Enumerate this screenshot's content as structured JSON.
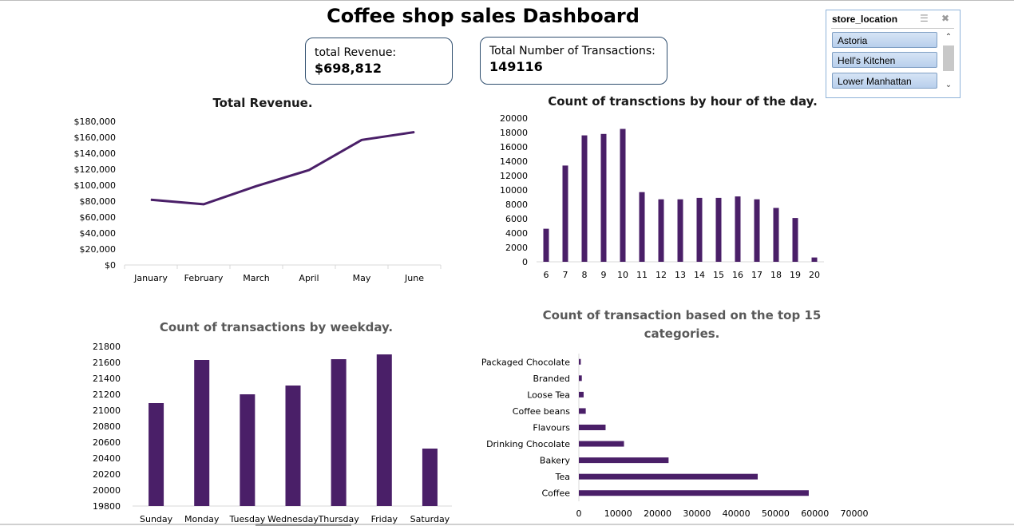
{
  "dashboard": {
    "title": "Coffee shop sales Dashboard"
  },
  "kpis": [
    {
      "label": "total Revenue:",
      "value": "$698,812"
    },
    {
      "label": "Total Number of Transactions:",
      "value": "149116"
    }
  ],
  "slicer": {
    "header": "store_location",
    "items": [
      "Astoria",
      "Hell's Kitchen",
      "Lower Manhattan"
    ]
  },
  "colors": {
    "series": "#4a1f68",
    "axis": "#d9d9d9",
    "chart_title_dark": "#1a1a1a",
    "chart_title_gray": "#595959",
    "slicer_border": "#8fb3d9"
  },
  "chart_data": [
    {
      "type": "line",
      "title": "Total Revenue.",
      "categories": [
        "January",
        "February",
        "March",
        "April",
        "May",
        "June"
      ],
      "values": [
        81700,
        76100,
        98800,
        118900,
        156700,
        166500
      ],
      "ylim": [
        0,
        180000
      ],
      "yticks": [
        0,
        20000,
        40000,
        60000,
        80000,
        100000,
        120000,
        140000,
        160000,
        180000
      ],
      "ytick_labels": [
        "$0",
        "$20,000",
        "$40,000",
        "$60,000",
        "$80,000",
        "$100,000",
        "$120,000",
        "$140,000",
        "$160,000",
        "$180,000"
      ],
      "grid": false
    },
    {
      "type": "bar",
      "title": "Count of transctions by hour of the day.",
      "categories": [
        "6",
        "7",
        "8",
        "9",
        "10",
        "11",
        "12",
        "13",
        "14",
        "15",
        "16",
        "17",
        "18",
        "19",
        "20"
      ],
      "values": [
        4600,
        13400,
        17600,
        17800,
        18500,
        9700,
        8700,
        8700,
        8900,
        8900,
        9100,
        8700,
        7500,
        6100,
        600
      ],
      "ylim": [
        0,
        20000
      ],
      "yticks": [
        0,
        2000,
        4000,
        6000,
        8000,
        10000,
        12000,
        14000,
        16000,
        18000,
        20000
      ],
      "ytick_labels": [
        "0",
        "2000",
        "4000",
        "6000",
        "8000",
        "10000",
        "12000",
        "14000",
        "16000",
        "18000",
        "20000"
      ],
      "grid": false
    },
    {
      "type": "bar",
      "title": "Count of transactions by weekday.",
      "categories": [
        "Sunday",
        "Monday",
        "Tuesday",
        "Wednesday",
        "Thursday",
        "Friday",
        "Saturday"
      ],
      "values": [
        21090,
        21630,
        21200,
        21310,
        21640,
        21700,
        20520
      ],
      "ylim": [
        19800,
        21800
      ],
      "yticks": [
        19800,
        20000,
        20200,
        20400,
        20600,
        20800,
        21000,
        21200,
        21400,
        21600,
        21800
      ],
      "ytick_labels": [
        "19800",
        "20000",
        "20200",
        "20400",
        "20600",
        "20800",
        "21000",
        "21200",
        "21400",
        "21600",
        "21800"
      ],
      "grid": false
    },
    {
      "type": "bar",
      "orientation": "horizontal",
      "title_lines": [
        "Count of transaction based on the top 15",
        "categories."
      ],
      "categories": [
        "Packaged Chocolate",
        "Branded",
        "Loose Tea",
        "Coffee beans",
        "Flavours",
        "Drinking Chocolate",
        "Bakery",
        "Tea",
        "Coffee"
      ],
      "values": [
        490,
        750,
        1210,
        1750,
        6790,
        11470,
        22800,
        45450,
        58420
      ],
      "xlim": [
        0,
        70000
      ],
      "xticks": [
        0,
        10000,
        20000,
        30000,
        40000,
        50000,
        60000,
        70000
      ],
      "xtick_labels": [
        "0",
        "10000",
        "20000",
        "30000",
        "40000",
        "50000",
        "60000",
        "70000"
      ],
      "grid": false
    }
  ]
}
